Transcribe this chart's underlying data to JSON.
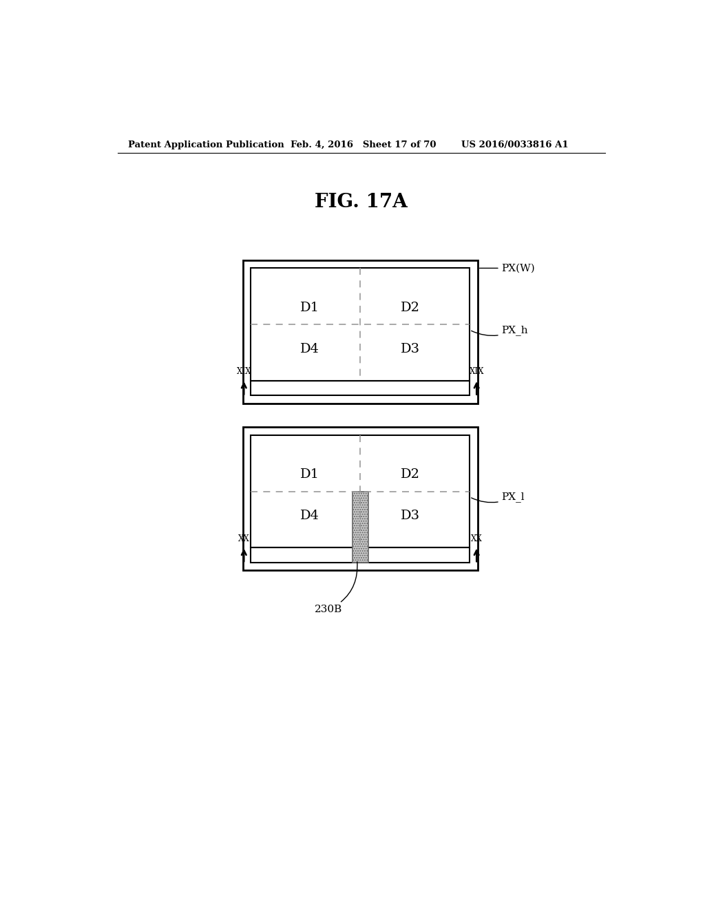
{
  "header_left": "Patent Application Publication",
  "header_mid": "Feb. 4, 2016   Sheet 17 of 70",
  "header_right": "US 2016/0033816 A1",
  "fig_title": "FIG. 17A",
  "bg_color": "#ffffff",
  "line_color": "#000000",
  "dashed_color": "#999999",
  "label_fontsize": 14,
  "ann_fontsize": 11,
  "header_fontsize": 9.5,
  "title_fontsize": 20
}
